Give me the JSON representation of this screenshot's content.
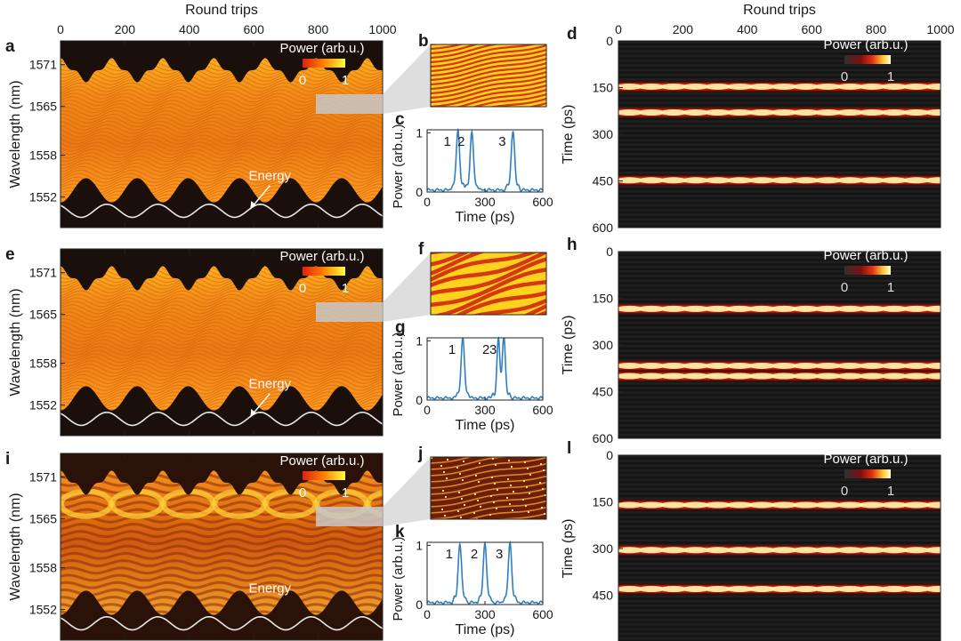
{
  "figure": {
    "colors": {
      "heat_dark": "#1a0f0a",
      "heat_mid": "#c8390a",
      "heat_hot": "#ff8c00",
      "heat_max": "#fff27a",
      "line_blue": "#2f7fc1",
      "energy_curve": "#e8e8e8",
      "zoom_box": "#c8c8c8"
    }
  },
  "chart_data": [
    {
      "id": "a",
      "panel_label": "a",
      "type": "heatmap",
      "title": "",
      "top_axis_label": "Round trips",
      "ylabel": "Wavelength (nm)",
      "x_ticks": [
        "0",
        "200",
        "400",
        "600",
        "800",
        "1000"
      ],
      "xlim": [
        0,
        1000
      ],
      "y_ticks": [
        "1571",
        "1565",
        "1558",
        "1552"
      ],
      "ylim": [
        1547.6,
        1574.4
      ],
      "colorbar": {
        "label": "Power (arb.u.)",
        "min": "0",
        "max": "1"
      },
      "annotation": "Energy",
      "oscillation_periods": 6.3,
      "style": "smooth"
    },
    {
      "id": "b",
      "panel_label": "b",
      "type": "heatmap",
      "description_of_content": "zoomed spectral fringes",
      "fringe_count": 14,
      "fringe_tilt": 0.35
    },
    {
      "id": "c",
      "panel_label": "c",
      "type": "line",
      "xlabel": "Time (ps)",
      "ylabel": "Power (arb.u.)",
      "x_ticks": [
        "0",
        "300",
        "600"
      ],
      "xlim": [
        0,
        600
      ],
      "y_ticks": [
        "0",
        "1"
      ],
      "ylim": [
        0,
        1.05
      ],
      "pulse_labels": [
        "1",
        "2",
        "3"
      ],
      "peaks": [
        {
          "t": 160,
          "amp": 1.0,
          "width": 9
        },
        {
          "t": 232,
          "amp": 0.96,
          "width": 9
        },
        {
          "t": 445,
          "amp": 1.0,
          "width": 9
        }
      ]
    },
    {
      "id": "d",
      "panel_label": "d",
      "type": "heatmap",
      "top_axis_label": "Round trips",
      "ylabel": "Time (ps)",
      "x_ticks": [
        "0",
        "200",
        "400",
        "600",
        "800",
        "1000"
      ],
      "xlim": [
        0,
        1000
      ],
      "y_ticks": [
        "0",
        "150",
        "300",
        "450",
        "600"
      ],
      "ylim": [
        0,
        600
      ],
      "colorbar": {
        "label": "Power (arb.u.)",
        "min": "0",
        "max": "1"
      },
      "pulse_times": [
        147,
        230,
        448
      ]
    },
    {
      "id": "e",
      "panel_label": "e",
      "type": "heatmap",
      "ylabel": "Wavelength (nm)",
      "y_ticks": [
        "1571",
        "1565",
        "1558",
        "1552"
      ],
      "ylim": [
        1547.6,
        1574.4
      ],
      "colorbar": {
        "label": "Power (arb.u.)",
        "min": "0",
        "max": "1"
      },
      "annotation": "Energy",
      "oscillation_periods": 6.3,
      "style": "smooth"
    },
    {
      "id": "f",
      "panel_label": "f",
      "type": "heatmap",
      "description_of_content": "zoomed spectral fringes",
      "fringe_count": 7,
      "fringe_tilt": 0.55
    },
    {
      "id": "g",
      "panel_label": "g",
      "type": "line",
      "xlabel": "Time (ps)",
      "ylabel": "Power (arb.u.)",
      "x_ticks": [
        "0",
        "300",
        "600"
      ],
      "xlim": [
        0,
        600
      ],
      "y_ticks": [
        "0",
        "1"
      ],
      "ylim": [
        0,
        1.05
      ],
      "pulse_labels": [
        "1",
        "2",
        "3"
      ],
      "peaks": [
        {
          "t": 185,
          "amp": 1.0,
          "width": 9
        },
        {
          "t": 370,
          "amp": 0.92,
          "width": 8
        },
        {
          "t": 398,
          "amp": 1.0,
          "width": 8
        }
      ]
    },
    {
      "id": "h",
      "panel_label": "h",
      "type": "heatmap",
      "ylabel": "Time (ps)",
      "y_ticks": [
        "0",
        "150",
        "300",
        "450",
        "600"
      ],
      "ylim": [
        0,
        600
      ],
      "colorbar": {
        "label": "Power (arb.u.)",
        "min": "0",
        "max": "1"
      },
      "pulse_times": [
        184,
        367,
        400
      ]
    },
    {
      "id": "i",
      "panel_label": "i",
      "type": "heatmap",
      "ylabel": "Wavelength (nm)",
      "x_ticks": [],
      "xlim": [
        0,
        1000
      ],
      "y_ticks": [
        "1571",
        "1565",
        "1558",
        "1552"
      ],
      "ylim": [
        1547.6,
        1574.4
      ],
      "colorbar": {
        "label": "Power (arb.u.)",
        "min": "0",
        "max": "1"
      },
      "annotation": "Energy",
      "oscillation_periods": 6.3,
      "style": "noisy"
    },
    {
      "id": "j",
      "panel_label": "j",
      "type": "heatmap",
      "description_of_content": "zoomed spectral fringes",
      "fringe_count": 10,
      "fringe_tilt": 0.3
    },
    {
      "id": "k",
      "panel_label": "k",
      "type": "line",
      "xlabel": "Time (ps)",
      "ylabel": "Power (arb.u.)",
      "x_ticks": [
        "0",
        "300",
        "600"
      ],
      "xlim": [
        0,
        600
      ],
      "y_ticks": [
        "0",
        "1"
      ],
      "ylim": [
        0,
        1.05
      ],
      "pulse_labels": [
        "1",
        "2",
        "3"
      ],
      "peaks": [
        {
          "t": 170,
          "amp": 1.0,
          "width": 9
        },
        {
          "t": 300,
          "amp": 1.0,
          "width": 9
        },
        {
          "t": 430,
          "amp": 1.0,
          "width": 9
        }
      ]
    },
    {
      "id": "l",
      "panel_label": "l",
      "type": "heatmap",
      "ylabel": "Time (ps)",
      "y_ticks": [
        "0",
        "150",
        "300",
        "450"
      ],
      "ylim": [
        0,
        600
      ],
      "colorbar": {
        "label": "Power (arb.u.)",
        "min": "0",
        "max": "1"
      },
      "pulse_times": [
        160,
        305,
        430
      ]
    }
  ]
}
